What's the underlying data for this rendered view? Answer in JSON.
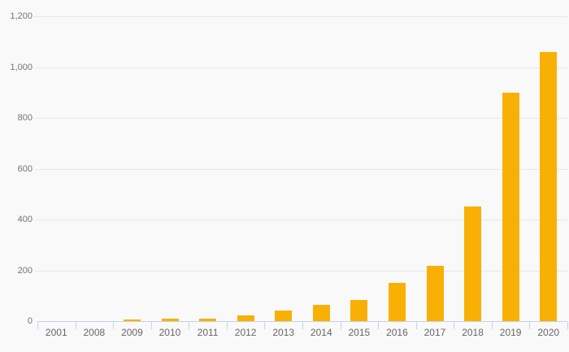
{
  "chart_data": {
    "type": "bar",
    "title": "",
    "xlabel": "",
    "ylabel": "",
    "categories": [
      "2001",
      "2008",
      "2009",
      "2010",
      "2011",
      "2012",
      "2013",
      "2014",
      "2015",
      "2016",
      "2017",
      "2018",
      "2019",
      "2020"
    ],
    "values": [
      0,
      0,
      6,
      10,
      9,
      23,
      43,
      64,
      82,
      150,
      218,
      450,
      900,
      1060
    ],
    "ylim": [
      0,
      1200
    ],
    "y_tick_interval": 200,
    "y_tick_values": [
      0,
      200,
      400,
      600,
      800,
      1000,
      1200
    ],
    "y_tick_labels": [
      "0",
      "200",
      "400",
      "600",
      "800",
      "1,000",
      "1,200"
    ],
    "grid": "horizontal",
    "legend": "none",
    "colors": {
      "bar": "#f9b005",
      "gridline": "#e8e8e8",
      "axis_line": "#c7d2e6",
      "y_label_text": "#737373",
      "x_label_text": "#666666",
      "background": "#f9f9f9"
    }
  }
}
